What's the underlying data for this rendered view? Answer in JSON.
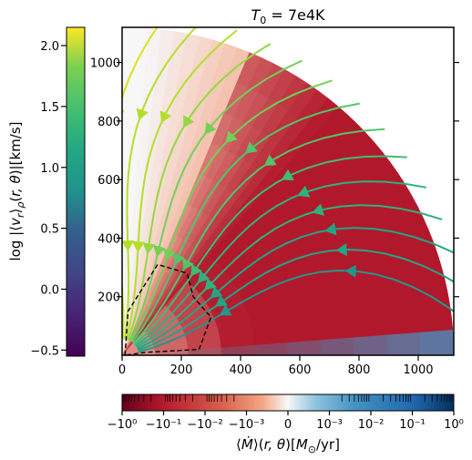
{
  "chart_data": {
    "type": "heatmap",
    "title": "T_0 = 7e4K",
    "x_axis": {
      "range": [
        0,
        1120
      ],
      "ticks": [
        0,
        200,
        400,
        600,
        800,
        1000
      ],
      "tick_labels": [
        "0",
        "200",
        "400",
        "600",
        "800",
        "1000"
      ]
    },
    "y_axis": {
      "range": [
        0,
        1120
      ],
      "ticks": [
        200,
        400,
        600,
        800,
        1000
      ],
      "tick_labels": [
        "200",
        "400",
        "600",
        "800",
        "1000"
      ]
    },
    "domain_radius": 1120,
    "heatmap_variable": "mass_flux",
    "streamline_variable": "log_velocity",
    "vertical_colorbar": {
      "label": "log |⟨v_r⟩_ρ(r, θ)|[km/s]",
      "colormap": "viridis",
      "range": [
        -0.55,
        2.15
      ],
      "ticks": [
        -0.5,
        0.0,
        0.5,
        1.0,
        1.5,
        2.0
      ],
      "tick_labels": [
        "−0.5",
        "0.0",
        "0.5",
        "1.0",
        "1.5",
        "2.0"
      ]
    },
    "horizontal_colorbar": {
      "label": "⟨Ṁ⟩(r, θ)[M_⊙/yr]",
      "colormap": "RdBu",
      "scale": "symlog",
      "ticks": [
        -1,
        -0.1,
        -0.01,
        -0.001,
        0,
        0.001,
        0.01,
        0.1,
        1
      ],
      "tick_labels": [
        "−10⁰",
        "−10⁻¹",
        "−10⁻²",
        "−10⁻³",
        "0",
        "10⁻³",
        "10⁻²",
        "10⁻¹",
        "10⁰"
      ]
    },
    "annotations": [
      "dashed black contour near origin",
      "thin positive (blue) outflow layer near equator"
    ],
    "colors": {
      "inflow": "#b5212c",
      "outflow": "#2f76b6",
      "neutral": "#f7f7f7"
    }
  }
}
